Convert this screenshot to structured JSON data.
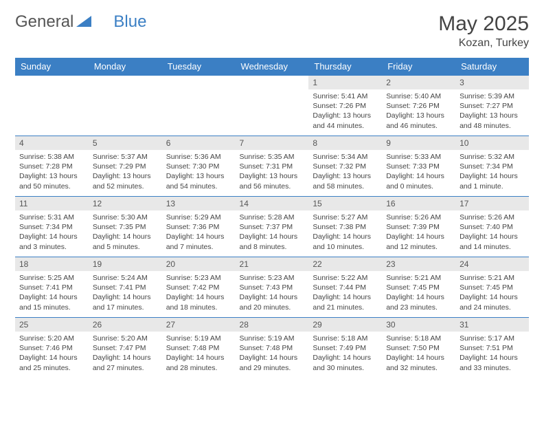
{
  "logo": {
    "part1": "General",
    "part2": "Blue"
  },
  "title": "May 2025",
  "location": "Kozan, Turkey",
  "colors": {
    "header_bg": "#3b7fc4",
    "header_text": "#ffffff",
    "daynum_bg": "#e8e8e8",
    "border": "#3b7fc4",
    "text": "#444444"
  },
  "day_headers": [
    "Sunday",
    "Monday",
    "Tuesday",
    "Wednesday",
    "Thursday",
    "Friday",
    "Saturday"
  ],
  "weeks": [
    [
      null,
      null,
      null,
      null,
      {
        "n": "1",
        "sr": "5:41 AM",
        "ss": "7:26 PM",
        "dl": "13 hours and 44 minutes."
      },
      {
        "n": "2",
        "sr": "5:40 AM",
        "ss": "7:26 PM",
        "dl": "13 hours and 46 minutes."
      },
      {
        "n": "3",
        "sr": "5:39 AM",
        "ss": "7:27 PM",
        "dl": "13 hours and 48 minutes."
      }
    ],
    [
      {
        "n": "4",
        "sr": "5:38 AM",
        "ss": "7:28 PM",
        "dl": "13 hours and 50 minutes."
      },
      {
        "n": "5",
        "sr": "5:37 AM",
        "ss": "7:29 PM",
        "dl": "13 hours and 52 minutes."
      },
      {
        "n": "6",
        "sr": "5:36 AM",
        "ss": "7:30 PM",
        "dl": "13 hours and 54 minutes."
      },
      {
        "n": "7",
        "sr": "5:35 AM",
        "ss": "7:31 PM",
        "dl": "13 hours and 56 minutes."
      },
      {
        "n": "8",
        "sr": "5:34 AM",
        "ss": "7:32 PM",
        "dl": "13 hours and 58 minutes."
      },
      {
        "n": "9",
        "sr": "5:33 AM",
        "ss": "7:33 PM",
        "dl": "14 hours and 0 minutes."
      },
      {
        "n": "10",
        "sr": "5:32 AM",
        "ss": "7:34 PM",
        "dl": "14 hours and 1 minute."
      }
    ],
    [
      {
        "n": "11",
        "sr": "5:31 AM",
        "ss": "7:34 PM",
        "dl": "14 hours and 3 minutes."
      },
      {
        "n": "12",
        "sr": "5:30 AM",
        "ss": "7:35 PM",
        "dl": "14 hours and 5 minutes."
      },
      {
        "n": "13",
        "sr": "5:29 AM",
        "ss": "7:36 PM",
        "dl": "14 hours and 7 minutes."
      },
      {
        "n": "14",
        "sr": "5:28 AM",
        "ss": "7:37 PM",
        "dl": "14 hours and 8 minutes."
      },
      {
        "n": "15",
        "sr": "5:27 AM",
        "ss": "7:38 PM",
        "dl": "14 hours and 10 minutes."
      },
      {
        "n": "16",
        "sr": "5:26 AM",
        "ss": "7:39 PM",
        "dl": "14 hours and 12 minutes."
      },
      {
        "n": "17",
        "sr": "5:26 AM",
        "ss": "7:40 PM",
        "dl": "14 hours and 14 minutes."
      }
    ],
    [
      {
        "n": "18",
        "sr": "5:25 AM",
        "ss": "7:41 PM",
        "dl": "14 hours and 15 minutes."
      },
      {
        "n": "19",
        "sr": "5:24 AM",
        "ss": "7:41 PM",
        "dl": "14 hours and 17 minutes."
      },
      {
        "n": "20",
        "sr": "5:23 AM",
        "ss": "7:42 PM",
        "dl": "14 hours and 18 minutes."
      },
      {
        "n": "21",
        "sr": "5:23 AM",
        "ss": "7:43 PM",
        "dl": "14 hours and 20 minutes."
      },
      {
        "n": "22",
        "sr": "5:22 AM",
        "ss": "7:44 PM",
        "dl": "14 hours and 21 minutes."
      },
      {
        "n": "23",
        "sr": "5:21 AM",
        "ss": "7:45 PM",
        "dl": "14 hours and 23 minutes."
      },
      {
        "n": "24",
        "sr": "5:21 AM",
        "ss": "7:45 PM",
        "dl": "14 hours and 24 minutes."
      }
    ],
    [
      {
        "n": "25",
        "sr": "5:20 AM",
        "ss": "7:46 PM",
        "dl": "14 hours and 25 minutes."
      },
      {
        "n": "26",
        "sr": "5:20 AM",
        "ss": "7:47 PM",
        "dl": "14 hours and 27 minutes."
      },
      {
        "n": "27",
        "sr": "5:19 AM",
        "ss": "7:48 PM",
        "dl": "14 hours and 28 minutes."
      },
      {
        "n": "28",
        "sr": "5:19 AM",
        "ss": "7:48 PM",
        "dl": "14 hours and 29 minutes."
      },
      {
        "n": "29",
        "sr": "5:18 AM",
        "ss": "7:49 PM",
        "dl": "14 hours and 30 minutes."
      },
      {
        "n": "30",
        "sr": "5:18 AM",
        "ss": "7:50 PM",
        "dl": "14 hours and 32 minutes."
      },
      {
        "n": "31",
        "sr": "5:17 AM",
        "ss": "7:51 PM",
        "dl": "14 hours and 33 minutes."
      }
    ]
  ],
  "labels": {
    "sunrise": "Sunrise:",
    "sunset": "Sunset:",
    "daylight": "Daylight:"
  }
}
